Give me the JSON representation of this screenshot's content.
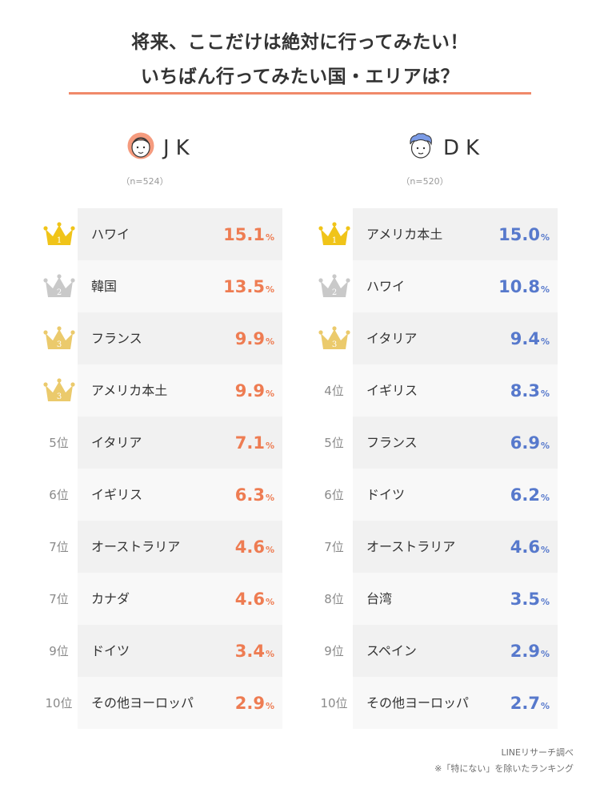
{
  "header": {
    "title_line1": "将来、ここだけは絶対に行ってみたい！",
    "title_line2": "いちばん行ってみたい国・エリアは？"
  },
  "colors": {
    "accent_rule": "#f0896a",
    "jk_value": "#ee7c52",
    "dk_value": "#5779cc",
    "gold_crown": "#f0c419",
    "silver_crown": "#c9c9c9",
    "bronze_crown": "#ebca6c"
  },
  "chart_data": [
    {
      "type": "table",
      "group": "JK",
      "sample": "（n=524）",
      "value_unit": "%",
      "rows": [
        {
          "rank": 1,
          "rank_label": "1",
          "crown": "gold-crown-icon",
          "label": "ハワイ",
          "value": "15.1"
        },
        {
          "rank": 2,
          "rank_label": "2",
          "crown": "silver-crown-icon",
          "label": "韓国",
          "value": "13.5"
        },
        {
          "rank": 3,
          "rank_label": "3",
          "crown": "bronze-crown-icon",
          "label": "フランス",
          "value": "9.9"
        },
        {
          "rank": 3,
          "rank_label": "3",
          "crown": "bronze-crown-icon",
          "label": "アメリカ本土",
          "value": "9.9"
        },
        {
          "rank": 5,
          "rank_label": "5位",
          "label": "イタリア",
          "value": "7.1"
        },
        {
          "rank": 6,
          "rank_label": "6位",
          "label": "イギリス",
          "value": "6.3"
        },
        {
          "rank": 7,
          "rank_label": "7位",
          "label": "オーストラリア",
          "value": "4.6"
        },
        {
          "rank": 7,
          "rank_label": "7位",
          "label": "カナダ",
          "value": "4.6"
        },
        {
          "rank": 9,
          "rank_label": "9位",
          "label": "ドイツ",
          "value": "3.4"
        },
        {
          "rank": 10,
          "rank_label": "10位",
          "label": "その他ヨーロッパ",
          "value": "2.9"
        }
      ]
    },
    {
      "type": "table",
      "group": "DK",
      "sample": "（n=520）",
      "value_unit": "%",
      "rows": [
        {
          "rank": 1,
          "rank_label": "1",
          "crown": "gold-crown-icon",
          "label": "アメリカ本土",
          "value": "15.0"
        },
        {
          "rank": 2,
          "rank_label": "2",
          "crown": "silver-crown-icon",
          "label": "ハワイ",
          "value": "10.8"
        },
        {
          "rank": 3,
          "rank_label": "3",
          "crown": "bronze-crown-icon",
          "label": "イタリア",
          "value": "9.4"
        },
        {
          "rank": 4,
          "rank_label": "4位",
          "label": "イギリス",
          "value": "8.3"
        },
        {
          "rank": 5,
          "rank_label": "5位",
          "label": "フランス",
          "value": "6.9"
        },
        {
          "rank": 6,
          "rank_label": "6位",
          "label": "ドイツ",
          "value": "6.2"
        },
        {
          "rank": 7,
          "rank_label": "7位",
          "label": "オーストラリア",
          "value": "4.6"
        },
        {
          "rank": 8,
          "rank_label": "8位",
          "label": "台湾",
          "value": "3.5"
        },
        {
          "rank": 9,
          "rank_label": "9位",
          "label": "スペイン",
          "value": "2.9"
        },
        {
          "rank": 10,
          "rank_label": "10位",
          "label": "その他ヨーロッパ",
          "value": "2.7"
        }
      ]
    }
  ],
  "footer": {
    "source": "LINEリサーチ調べ",
    "note": "※「特にない」を除いたランキング"
  }
}
